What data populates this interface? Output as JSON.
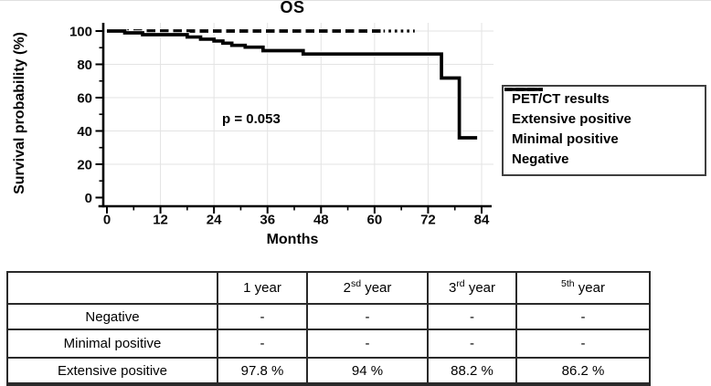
{
  "figure": {
    "title": "OS",
    "p_value_annotation": "p = 0.053",
    "x_axis_label": "Months",
    "y_axis_label": "Survival probability (%)"
  },
  "legend": {
    "title": "PET/CT results",
    "items": [
      {
        "label": "Extensive positive",
        "style": "solid"
      },
      {
        "label": "Minimal positive",
        "style": "dashed"
      },
      {
        "label": "Negative",
        "style": "dotted"
      }
    ]
  },
  "chart_data": {
    "type": "line",
    "subtype": "kaplan-meier-step",
    "title": "OS",
    "xlabel": "Months",
    "ylabel": "Survival probability (%)",
    "xlim": [
      0,
      84
    ],
    "ylim": [
      0,
      100
    ],
    "x_major_ticks": [
      0,
      12,
      24,
      36,
      48,
      60,
      72,
      84
    ],
    "x_minor_ticks": [
      6,
      18,
      30,
      42,
      54,
      66,
      78
    ],
    "y_major_ticks": [
      0,
      20,
      40,
      60,
      80,
      100
    ],
    "y_minor_ticks": [
      10,
      30,
      50,
      70,
      90
    ],
    "grid": true,
    "legend_position": "right",
    "legend_title": "PET/CT results",
    "annotation": {
      "text": "p = 0.053",
      "x_month": 27,
      "y_pct": 46
    },
    "series": [
      {
        "name": "Extensive positive",
        "line_style": "solid",
        "color": "#000000",
        "steps": [
          [
            0,
            100
          ],
          [
            4,
            98.9
          ],
          [
            8,
            97.8
          ],
          [
            18,
            96.4
          ],
          [
            21,
            95.1
          ],
          [
            24,
            94.0
          ],
          [
            26,
            92.7
          ],
          [
            28,
            91.4
          ],
          [
            31,
            90.3
          ],
          [
            35,
            88.2
          ],
          [
            44,
            86.2
          ],
          [
            75,
            71.8
          ],
          [
            79,
            35.9
          ]
        ],
        "end_month": 83
      },
      {
        "name": "Minimal positive",
        "line_style": "dashed",
        "color": "#000000",
        "steps": [
          [
            0,
            100
          ]
        ],
        "end_month": 62
      },
      {
        "name": "Negative",
        "line_style": "dotted",
        "color": "#000000",
        "steps": [
          [
            0,
            100
          ]
        ],
        "end_month": 69
      }
    ]
  },
  "results_table": {
    "header": [
      {
        "pre": "",
        "sup": "",
        "post": ""
      },
      {
        "pre": "1",
        "sup": "",
        "post": " year"
      },
      {
        "pre": "2",
        "sup": "sd",
        "post": " year"
      },
      {
        "pre": "3",
        "sup": "rd",
        "post": " year"
      },
      {
        "pre": "",
        "sup": "5th",
        "post": " year"
      }
    ],
    "rows": [
      {
        "label": "Negative",
        "values": [
          "-",
          "-",
          "-",
          "-"
        ]
      },
      {
        "label": "Minimal positive",
        "values": [
          "-",
          "-",
          "-",
          "-"
        ]
      },
      {
        "label": "Extensive positive",
        "values": [
          "97.8 %",
          "94 %",
          "88.2 %",
          "86.2 %"
        ]
      }
    ]
  }
}
